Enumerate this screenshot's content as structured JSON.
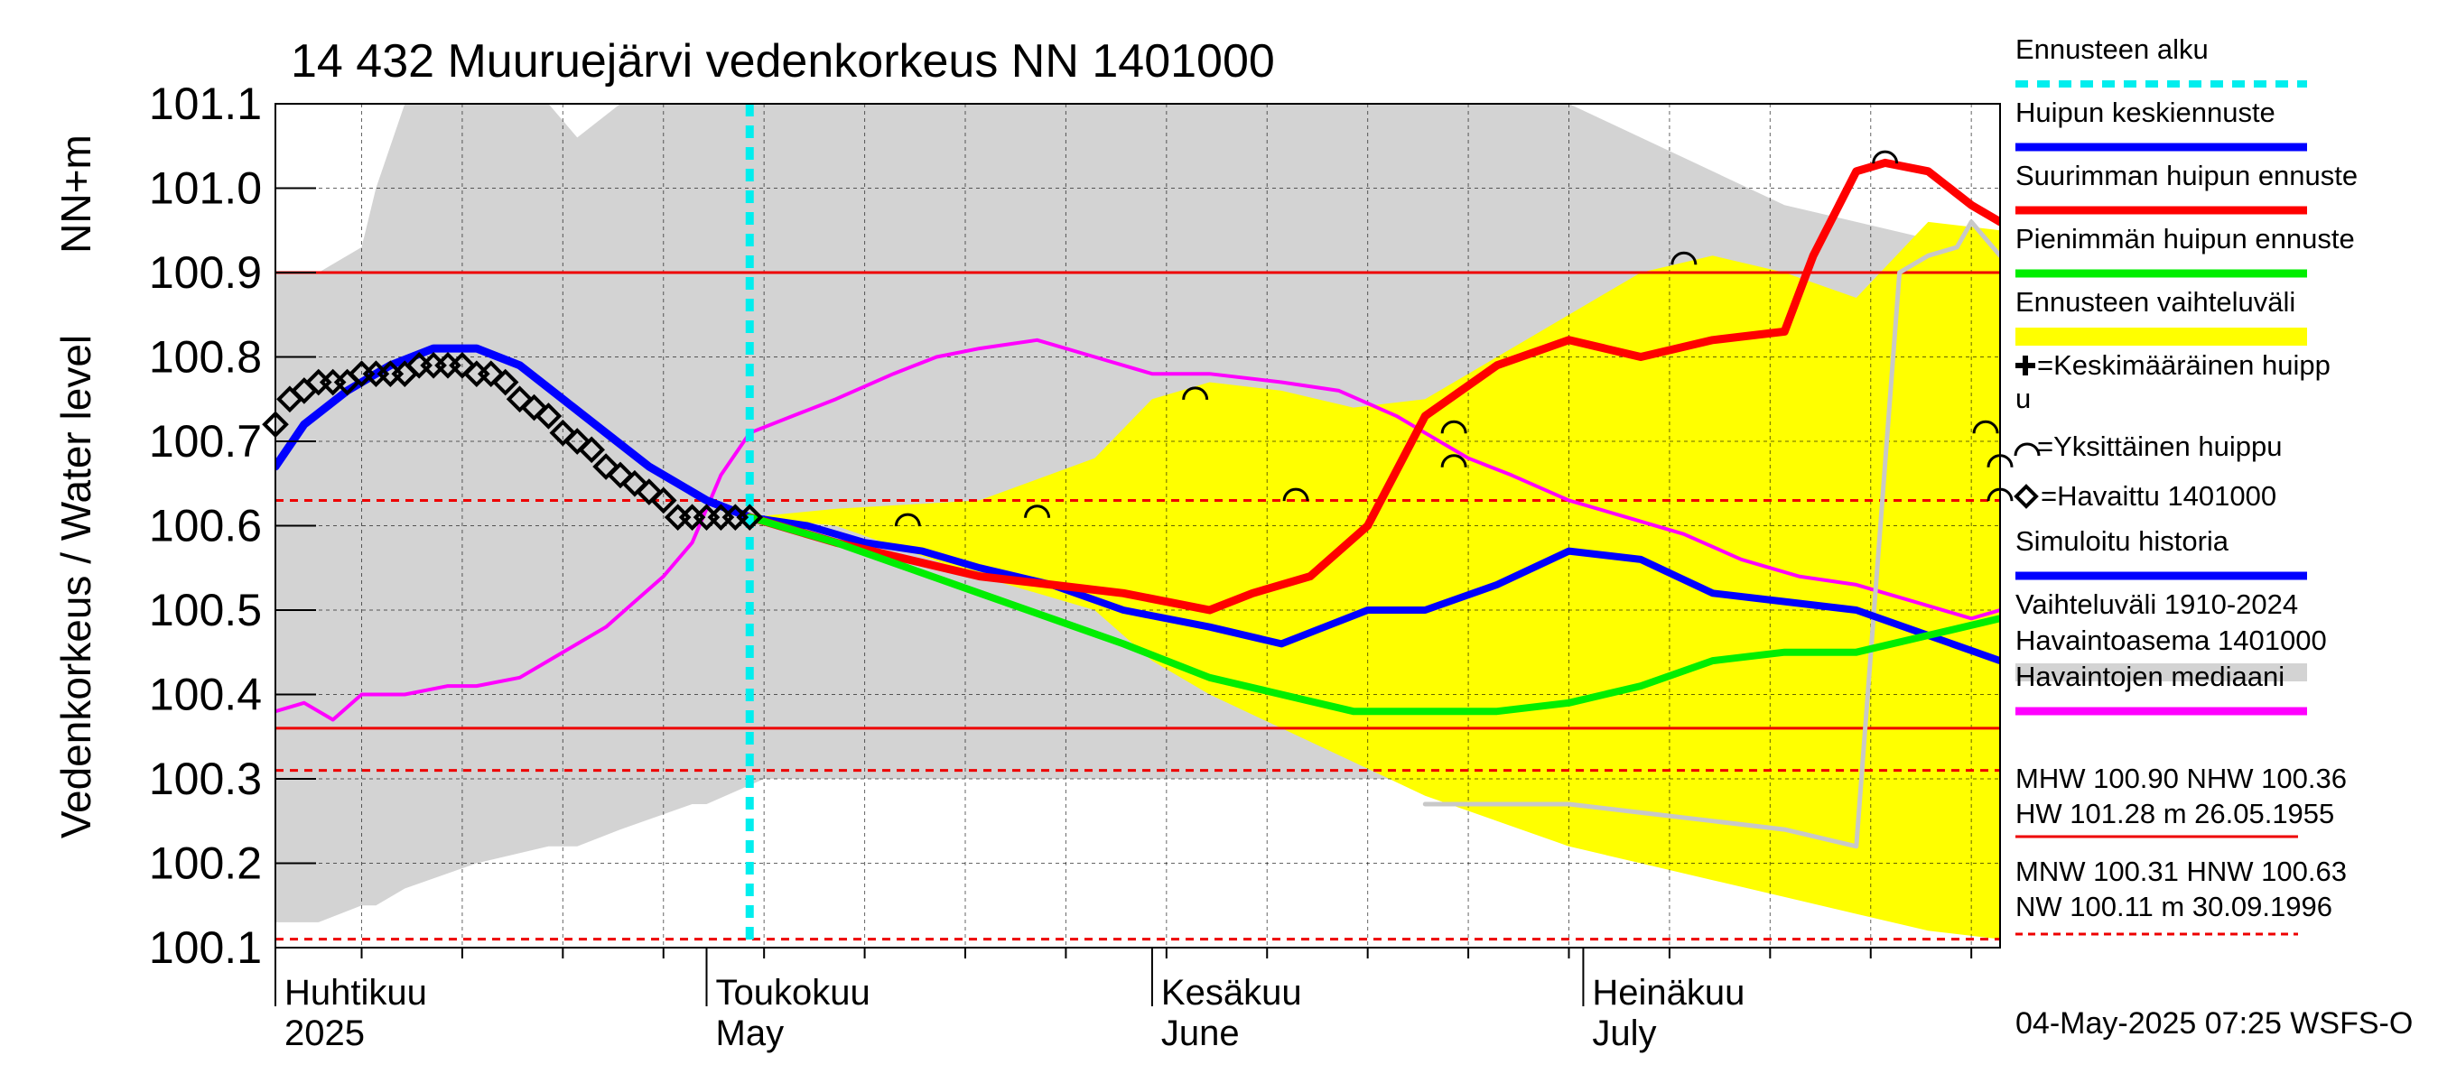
{
  "chart_data": {
    "type": "line",
    "title": "14 432 Muuruejärvi vedenkorkeus NN 1401000",
    "ylabel_main": "Vedenkorkeus / Water level",
    "ylabel_unit": "NN+m",
    "ylim": [
      100.1,
      101.1
    ],
    "xlim": [
      "2025-04-01",
      "2025-07-30"
    ],
    "yticks": [
      100.1,
      100.2,
      100.3,
      100.4,
      100.5,
      100.6,
      100.7,
      100.8,
      100.9,
      101.0,
      101.1
    ],
    "ytick_labels": [
      "100.1",
      "100.2",
      "100.3",
      "100.4",
      "100.5",
      "100.6",
      "100.7",
      "100.8",
      "100.9",
      "101.0",
      "101.1"
    ],
    "month_labels": [
      {
        "fi": "Huhtikuu",
        "en": "2025",
        "date": "2025-04-01"
      },
      {
        "fi": "Toukokuu",
        "en": "May",
        "date": "2025-05-01"
      },
      {
        "fi": "Kesäkuu",
        "en": "June",
        "date": "2025-06-01"
      },
      {
        "fi": "Heinäkuu",
        "en": "July",
        "date": "2025-07-01"
      }
    ],
    "forecast_start": "2025-05-04",
    "reference_lines": [
      {
        "name": "MHW",
        "value": 100.9,
        "style": "solid"
      },
      {
        "name": "NHW",
        "value": 100.36,
        "style": "solid"
      },
      {
        "name": "MNW",
        "value": 100.31,
        "style": "dashed"
      },
      {
        "name": "HNW",
        "value": 100.63,
        "style": "dashed"
      },
      {
        "name": "NW",
        "value": 100.11,
        "style": "dashed"
      }
    ],
    "historical_range": {
      "x": [
        "2025-04-01",
        "2025-04-04",
        "2025-04-07",
        "2025-04-08",
        "2025-04-10",
        "2025-04-15",
        "2025-04-20",
        "2025-04-22",
        "2025-04-25",
        "2025-04-30",
        "2025-05-01",
        "2025-05-05",
        "2025-05-10",
        "2025-05-20",
        "2025-06-01",
        "2025-06-15",
        "2025-06-30",
        "2025-07-15",
        "2025-07-30"
      ],
      "upper": [
        100.9,
        100.9,
        100.93,
        101.0,
        101.1,
        101.1,
        101.1,
        101.06,
        101.1,
        101.1,
        101.1,
        101.1,
        101.1,
        101.1,
        101.1,
        101.1,
        101.1,
        100.98,
        100.92
      ],
      "lower": [
        100.13,
        100.13,
        100.15,
        100.15,
        100.17,
        100.2,
        100.22,
        100.22,
        100.24,
        100.27,
        100.27,
        100.3,
        100.3,
        100.3,
        100.3,
        100.3,
        100.3,
        100.3,
        100.3
      ]
    },
    "forecast_range": {
      "x": [
        "2025-05-04",
        "2025-05-10",
        "2025-05-20",
        "2025-05-28",
        "2025-06-01",
        "2025-06-05",
        "2025-06-10",
        "2025-06-15",
        "2025-06-20",
        "2025-06-25",
        "2025-06-30",
        "2025-07-05",
        "2025-07-10",
        "2025-07-15",
        "2025-07-20",
        "2025-07-25",
        "2025-07-30"
      ],
      "upper": [
        100.61,
        100.62,
        100.63,
        100.68,
        100.75,
        100.77,
        100.76,
        100.74,
        100.75,
        100.8,
        100.85,
        100.9,
        100.92,
        100.9,
        100.87,
        100.96,
        100.95
      ],
      "lower": [
        100.61,
        100.6,
        100.54,
        100.5,
        100.44,
        100.4,
        100.36,
        100.32,
        100.28,
        100.25,
        100.22,
        100.2,
        100.18,
        100.16,
        100.14,
        100.12,
        100.11
      ]
    },
    "series": [
      {
        "name": "Havaintojen mediaani",
        "color": "#ff00ff",
        "x": [
          "2025-04-01",
          "2025-04-03",
          "2025-04-05",
          "2025-04-07",
          "2025-04-10",
          "2025-04-13",
          "2025-04-15",
          "2025-04-18",
          "2025-04-20",
          "2025-04-22",
          "2025-04-24",
          "2025-04-26",
          "2025-04-28",
          "2025-04-30",
          "2025-05-02",
          "2025-05-04",
          "2025-05-07",
          "2025-05-10",
          "2025-05-14",
          "2025-05-17",
          "2025-05-20",
          "2025-05-24",
          "2025-05-28",
          "2025-06-01",
          "2025-06-05",
          "2025-06-10",
          "2025-06-14",
          "2025-06-18",
          "2025-06-20",
          "2025-06-23",
          "2025-06-26",
          "2025-06-30",
          "2025-07-04",
          "2025-07-08",
          "2025-07-12",
          "2025-07-16",
          "2025-07-20",
          "2025-07-24",
          "2025-07-28",
          "2025-07-30"
        ],
        "y": [
          100.38,
          100.39,
          100.37,
          100.4,
          100.4,
          100.41,
          100.41,
          100.42,
          100.44,
          100.46,
          100.48,
          100.51,
          100.54,
          100.58,
          100.66,
          100.71,
          100.73,
          100.75,
          100.78,
          100.8,
          100.81,
          100.82,
          100.8,
          100.78,
          100.78,
          100.77,
          100.76,
          100.73,
          100.71,
          100.68,
          100.66,
          100.63,
          100.61,
          100.59,
          100.56,
          100.54,
          100.53,
          100.51,
          100.49,
          100.5
        ]
      },
      {
        "name": "Ennusteen vaihteluväli (gray)",
        "color": "#c8c8c8",
        "x": [
          "2025-06-20",
          "2025-06-25",
          "2025-06-30",
          "2025-07-05",
          "2025-07-10",
          "2025-07-15",
          "2025-07-20",
          "2025-07-23",
          "2025-07-25",
          "2025-07-27",
          "2025-07-28",
          "2025-07-30"
        ],
        "y": [
          100.27,
          100.27,
          100.27,
          100.26,
          100.25,
          100.24,
          100.22,
          100.9,
          100.92,
          100.93,
          100.96,
          100.92
        ]
      },
      {
        "name": "Simuloitu historia",
        "color": "#0000ff",
        "x": [
          "2025-04-01",
          "2025-04-03",
          "2025-04-06",
          "2025-04-09",
          "2025-04-12",
          "2025-04-15",
          "2025-04-18",
          "2025-04-21",
          "2025-04-24",
          "2025-04-27",
          "2025-05-01",
          "2025-05-04"
        ],
        "y": [
          100.67,
          100.72,
          100.76,
          100.79,
          100.81,
          100.81,
          100.79,
          100.75,
          100.71,
          100.67,
          100.63,
          100.61
        ]
      },
      {
        "name": "Huipun keskiennuste",
        "color": "#0000ff",
        "x": [
          "2025-05-04",
          "2025-05-08",
          "2025-05-12",
          "2025-05-16",
          "2025-05-20",
          "2025-05-25",
          "2025-05-30",
          "2025-06-05",
          "2025-06-10",
          "2025-06-13",
          "2025-06-16",
          "2025-06-20",
          "2025-06-25",
          "2025-06-30",
          "2025-07-05",
          "2025-07-10",
          "2025-07-15",
          "2025-07-20",
          "2025-07-25",
          "2025-07-30"
        ],
        "y": [
          100.61,
          100.6,
          100.58,
          100.57,
          100.55,
          100.53,
          100.5,
          100.48,
          100.46,
          100.48,
          100.5,
          100.5,
          100.53,
          100.57,
          100.56,
          100.52,
          100.51,
          100.5,
          100.47,
          100.44
        ]
      },
      {
        "name": "Suurimman huipun ennuste",
        "color": "#ff0000",
        "x": [
          "2025-05-04",
          "2025-05-10",
          "2025-05-15",
          "2025-05-20",
          "2025-05-25",
          "2025-05-30",
          "2025-06-05",
          "2025-06-08",
          "2025-06-12",
          "2025-06-16",
          "2025-06-20",
          "2025-06-25",
          "2025-06-30",
          "2025-07-05",
          "2025-07-10",
          "2025-07-15",
          "2025-07-17",
          "2025-07-20",
          "2025-07-22",
          "2025-07-25",
          "2025-07-28",
          "2025-07-30"
        ],
        "y": [
          100.61,
          100.58,
          100.56,
          100.54,
          100.53,
          100.52,
          100.5,
          100.52,
          100.54,
          100.6,
          100.73,
          100.79,
          100.82,
          100.8,
          100.82,
          100.83,
          100.92,
          101.02,
          101.03,
          101.02,
          100.98,
          100.96
        ]
      },
      {
        "name": "Pienimmän huipun ennuste",
        "color": "#00ee00",
        "x": [
          "2025-05-04",
          "2025-05-10",
          "2025-05-15",
          "2025-05-20",
          "2025-05-25",
          "2025-05-30",
          "2025-06-05",
          "2025-06-10",
          "2025-06-15",
          "2025-06-20",
          "2025-06-25",
          "2025-06-30",
          "2025-07-05",
          "2025-07-10",
          "2025-07-15",
          "2025-07-20",
          "2025-07-25",
          "2025-07-30"
        ],
        "y": [
          100.61,
          100.58,
          100.55,
          100.52,
          100.49,
          100.46,
          100.42,
          100.4,
          100.38,
          100.38,
          100.38,
          100.39,
          100.41,
          100.44,
          100.45,
          100.45,
          100.47,
          100.49
        ]
      }
    ],
    "observed": {
      "name": "Havaittu 1401000",
      "x": [
        "2025-04-01",
        "2025-04-02",
        "2025-04-03",
        "2025-04-04",
        "2025-04-05",
        "2025-04-06",
        "2025-04-07",
        "2025-04-08",
        "2025-04-09",
        "2025-04-10",
        "2025-04-11",
        "2025-04-12",
        "2025-04-13",
        "2025-04-14",
        "2025-04-15",
        "2025-04-16",
        "2025-04-17",
        "2025-04-18",
        "2025-04-19",
        "2025-04-20",
        "2025-04-21",
        "2025-04-22",
        "2025-04-23",
        "2025-04-24",
        "2025-04-25",
        "2025-04-26",
        "2025-04-27",
        "2025-04-28",
        "2025-04-29",
        "2025-04-30",
        "2025-05-01",
        "2025-05-02",
        "2025-05-03",
        "2025-05-04"
      ],
      "y": [
        100.72,
        100.75,
        100.76,
        100.77,
        100.77,
        100.77,
        100.78,
        100.78,
        100.78,
        100.78,
        100.79,
        100.79,
        100.79,
        100.79,
        100.78,
        100.78,
        100.77,
        100.75,
        100.74,
        100.73,
        100.71,
        100.7,
        100.69,
        100.67,
        100.66,
        100.65,
        100.64,
        100.63,
        100.61,
        100.61,
        100.61,
        100.61,
        100.61,
        100.61
      ]
    },
    "single_peaks": {
      "x": [
        "2025-05-15",
        "2025-05-24",
        "2025-06-04",
        "2025-06-11",
        "2025-06-22",
        "2025-06-22",
        "2025-07-08",
        "2025-07-22",
        "2025-07-29",
        "2025-07-30",
        "2025-07-30"
      ],
      "y": [
        100.61,
        100.62,
        100.76,
        100.64,
        100.72,
        100.68,
        100.92,
        101.04,
        100.72,
        100.68,
        100.64
      ]
    },
    "legend": [
      {
        "label": "Ennusteen alku",
        "kind": "dashed-line",
        "color": "#00eeee"
      },
      {
        "label": "Huipun keskiennuste",
        "kind": "line",
        "color": "#0000ff"
      },
      {
        "label": "Suurimman huipun ennuste",
        "kind": "line",
        "color": "#ff0000"
      },
      {
        "label": "Pienimmän huipun ennuste",
        "kind": "line",
        "color": "#00ee00"
      },
      {
        "label": "Ennusteen vaihteluväli",
        "kind": "band",
        "color": "#ffff00"
      },
      {
        "label": "=Keskimääräinen huipp",
        "label2": "u",
        "kind": "plus",
        "color": "#000000"
      },
      {
        "label": "=Yksittäinen huippu",
        "kind": "arc",
        "color": "#000000"
      },
      {
        "label": "=Havaittu 1401000",
        "kind": "diamond",
        "color": "#000000"
      },
      {
        "label": "Simuloitu historia",
        "kind": "line",
        "color": "#0000ff"
      },
      {
        "label": "Vaihteluväli 1910-2024",
        "label2": " Havaintoasema 1401000",
        "kind": "band",
        "color": "#d3d3d3"
      },
      {
        "label": "Havaintojen mediaani",
        "kind": "line",
        "color": "#ff00ff"
      }
    ],
    "stats_block_1": {
      "line1": "MHW 100.90 NHW 100.36",
      "line2": "HW 101.28 m 26.05.1955"
    },
    "stats_block_2": {
      "line1": "MNW 100.31 HNW 100.63",
      "line2": "NW 100.11 m 30.09.1996"
    },
    "footer": "04-May-2025 07:25 WSFS-O"
  }
}
